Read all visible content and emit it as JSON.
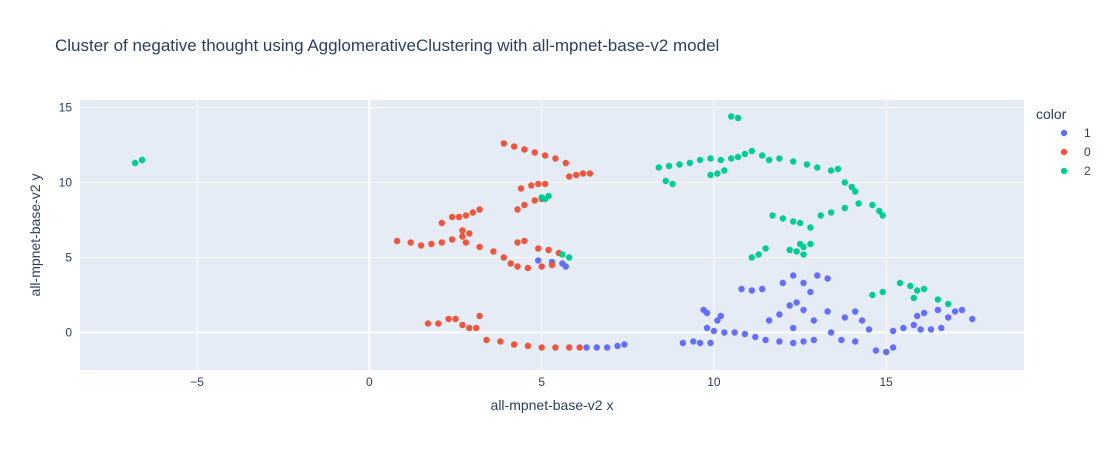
{
  "chart_data": {
    "type": "scatter",
    "title": "Cluster of negative thought using AgglomerativeClustering with all-mpnet-base-v2 model",
    "xlabel": "all-mpnet-base-v2 x",
    "ylabel": "all-mpnet-base-v2 y",
    "xlim": [
      -8.4,
      19.0
    ],
    "ylim": [
      -2.5,
      15.5
    ],
    "xticks": [
      -5,
      0,
      5,
      10,
      15
    ],
    "xtick_labels": [
      "−5",
      "0",
      "5",
      "10",
      "15"
    ],
    "yticks": [
      0,
      5,
      10,
      15
    ],
    "ytick_labels": [
      "0",
      "5",
      "10",
      "15"
    ],
    "grid": true,
    "legend": {
      "title": "color",
      "placement": "right"
    },
    "series": [
      {
        "name": "1",
        "color": "#636efa",
        "points": [
          [
            4.9,
            4.8
          ],
          [
            5.3,
            4.7
          ],
          [
            5.6,
            4.6
          ],
          [
            5.7,
            4.4
          ],
          [
            6.3,
            -1.0
          ],
          [
            6.6,
            -1.0
          ],
          [
            6.9,
            -1.0
          ],
          [
            7.2,
            -0.9
          ],
          [
            7.4,
            -0.8
          ],
          [
            9.1,
            -0.7
          ],
          [
            9.4,
            -0.6
          ],
          [
            9.6,
            -0.7
          ],
          [
            9.9,
            -0.7
          ],
          [
            9.7,
            1.5
          ],
          [
            9.8,
            1.3
          ],
          [
            10.2,
            1.1
          ],
          [
            10.1,
            0.8
          ],
          [
            9.8,
            0.3
          ],
          [
            10.0,
            0.1
          ],
          [
            10.3,
            0.0
          ],
          [
            10.6,
            0.0
          ],
          [
            10.9,
            -0.1
          ],
          [
            10.8,
            2.9
          ],
          [
            11.1,
            2.8
          ],
          [
            11.4,
            2.9
          ],
          [
            11.2,
            -0.3
          ],
          [
            11.5,
            -0.5
          ],
          [
            11.9,
            -0.6
          ],
          [
            12.3,
            -0.7
          ],
          [
            12.6,
            -0.6
          ],
          [
            12.9,
            -0.5
          ],
          [
            11.6,
            0.8
          ],
          [
            11.9,
            1.2
          ],
          [
            12.2,
            1.8
          ],
          [
            12.4,
            2.0
          ],
          [
            12.3,
            0.3
          ],
          [
            12.0,
            3.3
          ],
          [
            12.3,
            3.8
          ],
          [
            12.6,
            3.3
          ],
          [
            12.8,
            2.7
          ],
          [
            13.0,
            3.8
          ],
          [
            13.3,
            3.6
          ],
          [
            12.6,
            1.5
          ],
          [
            12.9,
            0.8
          ],
          [
            13.3,
            1.4
          ],
          [
            13.4,
            0.0
          ],
          [
            13.7,
            -0.5
          ],
          [
            14.1,
            -0.6
          ],
          [
            13.8,
            1.0
          ],
          [
            14.1,
            1.4
          ],
          [
            14.3,
            0.8
          ],
          [
            14.5,
            0.2
          ],
          [
            14.7,
            -1.2
          ],
          [
            15.0,
            -1.3
          ],
          [
            15.2,
            -1.0
          ],
          [
            15.2,
            0.1
          ],
          [
            15.5,
            0.3
          ],
          [
            15.8,
            0.5
          ],
          [
            16.0,
            0.2
          ],
          [
            16.3,
            0.2
          ],
          [
            16.6,
            0.3
          ],
          [
            15.9,
            1.1
          ],
          [
            16.1,
            1.3
          ],
          [
            16.5,
            1.5
          ],
          [
            16.8,
            1.0
          ],
          [
            17.0,
            1.4
          ],
          [
            17.2,
            1.5
          ],
          [
            17.5,
            0.9
          ]
        ]
      },
      {
        "name": "0",
        "color": "#ef553b",
        "points": [
          [
            3.9,
            12.6
          ],
          [
            4.2,
            12.4
          ],
          [
            4.5,
            12.2
          ],
          [
            4.8,
            12.0
          ],
          [
            5.1,
            11.8
          ],
          [
            5.4,
            11.6
          ],
          [
            5.7,
            11.3
          ],
          [
            5.8,
            10.4
          ],
          [
            6.0,
            10.5
          ],
          [
            6.2,
            10.6
          ],
          [
            6.4,
            10.6
          ],
          [
            4.4,
            9.6
          ],
          [
            4.7,
            9.8
          ],
          [
            4.9,
            9.9
          ],
          [
            5.1,
            9.9
          ],
          [
            4.3,
            8.2
          ],
          [
            4.5,
            8.5
          ],
          [
            4.8,
            8.8
          ],
          [
            5.0,
            8.9
          ],
          [
            2.1,
            7.3
          ],
          [
            2.4,
            7.7
          ],
          [
            2.6,
            7.7
          ],
          [
            2.8,
            7.8
          ],
          [
            3.0,
            8.0
          ],
          [
            3.2,
            8.2
          ],
          [
            0.8,
            6.1
          ],
          [
            1.2,
            6.0
          ],
          [
            1.5,
            5.8
          ],
          [
            1.8,
            5.9
          ],
          [
            2.1,
            6.0
          ],
          [
            2.4,
            6.2
          ],
          [
            2.7,
            6.4
          ],
          [
            2.7,
            6.8
          ],
          [
            2.9,
            6.6
          ],
          [
            2.8,
            6.0
          ],
          [
            3.2,
            5.7
          ],
          [
            3.6,
            5.4
          ],
          [
            3.9,
            5.0
          ],
          [
            4.1,
            4.6
          ],
          [
            4.3,
            4.4
          ],
          [
            4.6,
            4.3
          ],
          [
            5.0,
            4.4
          ],
          [
            5.3,
            4.5
          ],
          [
            4.3,
            6.0
          ],
          [
            4.5,
            6.1
          ],
          [
            4.9,
            5.6
          ],
          [
            5.2,
            5.5
          ],
          [
            5.5,
            5.3
          ],
          [
            1.7,
            0.6
          ],
          [
            2.0,
            0.6
          ],
          [
            2.3,
            0.9
          ],
          [
            2.5,
            0.9
          ],
          [
            2.7,
            0.5
          ],
          [
            2.9,
            0.3
          ],
          [
            3.2,
            1.1
          ],
          [
            3.1,
            0.3
          ],
          [
            3.4,
            -0.5
          ],
          [
            3.8,
            -0.6
          ],
          [
            4.2,
            -0.8
          ],
          [
            4.6,
            -0.9
          ],
          [
            5.0,
            -1.0
          ],
          [
            5.4,
            -1.0
          ],
          [
            5.8,
            -1.0
          ],
          [
            6.1,
            -1.0
          ]
        ]
      },
      {
        "name": "2",
        "color": "#00cc96",
        "points": [
          [
            -6.8,
            11.3
          ],
          [
            -6.6,
            11.5
          ],
          [
            5.0,
            9.0
          ],
          [
            5.1,
            8.9
          ],
          [
            5.2,
            9.1
          ],
          [
            5.6,
            5.2
          ],
          [
            5.8,
            5.0
          ],
          [
            10.5,
            14.4
          ],
          [
            10.7,
            14.3
          ],
          [
            8.4,
            11.0
          ],
          [
            8.7,
            11.1
          ],
          [
            9.0,
            11.2
          ],
          [
            8.6,
            10.1
          ],
          [
            8.8,
            9.9
          ],
          [
            9.3,
            11.3
          ],
          [
            9.6,
            11.5
          ],
          [
            9.9,
            11.6
          ],
          [
            10.2,
            11.5
          ],
          [
            10.5,
            11.6
          ],
          [
            10.7,
            11.7
          ],
          [
            9.9,
            10.5
          ],
          [
            10.1,
            10.6
          ],
          [
            10.3,
            10.8
          ],
          [
            10.9,
            11.9
          ],
          [
            11.1,
            12.1
          ],
          [
            11.4,
            11.8
          ],
          [
            11.6,
            11.5
          ],
          [
            11.9,
            11.6
          ],
          [
            12.3,
            11.4
          ],
          [
            12.7,
            11.2
          ],
          [
            13.0,
            11.0
          ],
          [
            13.4,
            10.8
          ],
          [
            13.6,
            10.9
          ],
          [
            13.8,
            10.0
          ],
          [
            14.0,
            9.7
          ],
          [
            14.1,
            9.4
          ],
          [
            14.6,
            8.5
          ],
          [
            14.8,
            8.1
          ],
          [
            14.9,
            7.8
          ],
          [
            11.7,
            7.8
          ],
          [
            12.0,
            7.6
          ],
          [
            12.3,
            7.4
          ],
          [
            12.5,
            7.3
          ],
          [
            12.8,
            7.0
          ],
          [
            13.1,
            7.8
          ],
          [
            13.4,
            8.0
          ],
          [
            13.8,
            8.3
          ],
          [
            14.2,
            8.6
          ],
          [
            12.2,
            5.5
          ],
          [
            12.4,
            5.4
          ],
          [
            12.6,
            5.7
          ],
          [
            12.5,
            5.9
          ],
          [
            12.8,
            5.9
          ],
          [
            12.6,
            5.2
          ],
          [
            11.1,
            5.0
          ],
          [
            11.3,
            5.2
          ],
          [
            11.5,
            5.6
          ],
          [
            14.6,
            2.5
          ],
          [
            14.9,
            2.7
          ],
          [
            15.4,
            3.3
          ],
          [
            15.7,
            3.1
          ],
          [
            15.9,
            2.8
          ],
          [
            16.1,
            2.9
          ],
          [
            15.8,
            2.3
          ],
          [
            16.5,
            2.2
          ],
          [
            16.8,
            1.9
          ]
        ]
      }
    ]
  }
}
